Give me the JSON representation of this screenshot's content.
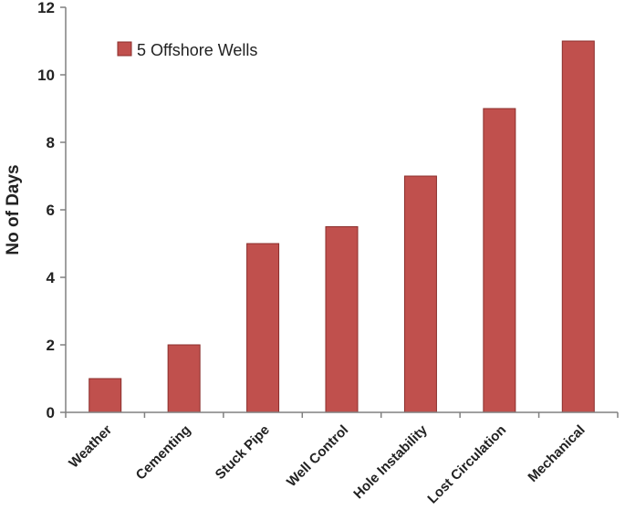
{
  "chart_data": {
    "type": "bar",
    "categories": [
      "Weather",
      "Cementing",
      "Stuck Pipe",
      "Well Control",
      "Hole Instability",
      "Lost Circulation",
      "Mechanical"
    ],
    "series": [
      {
        "name": "5 Offshore Wells",
        "values": [
          1,
          2,
          5,
          5.5,
          7,
          9,
          11
        ],
        "color": "#c0504d"
      }
    ],
    "xlabel": "",
    "ylabel": "No of Days",
    "ylim": [
      0,
      12
    ],
    "yticks": [
      0,
      2,
      4,
      6,
      8,
      10,
      12
    ],
    "grid": false,
    "legend_position": "top-left"
  }
}
